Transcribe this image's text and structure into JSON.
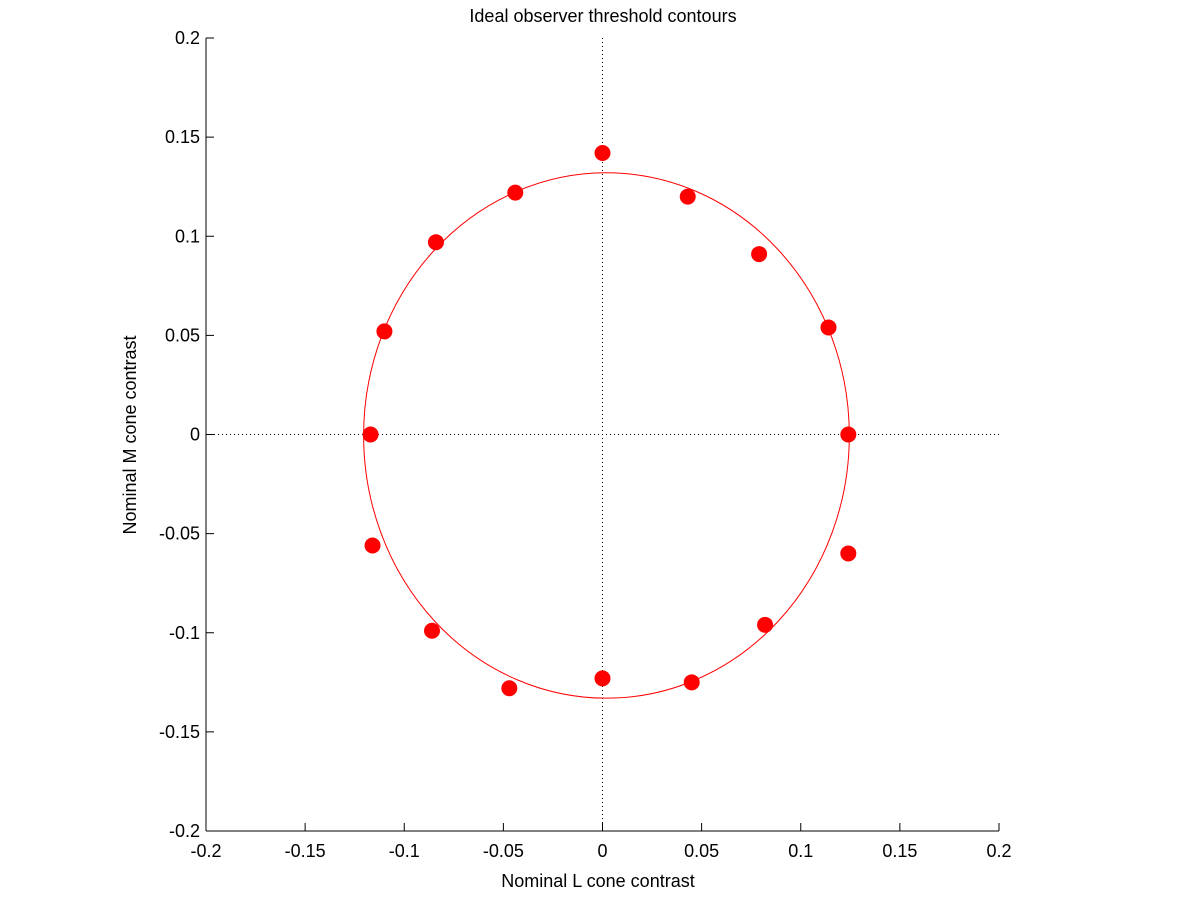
{
  "chart_data": {
    "type": "scatter",
    "title": "Ideal observer threshold contours",
    "xlabel": "Nominal L cone contrast",
    "ylabel": "Nominal M cone contrast",
    "xlim": [
      -0.2,
      0.2
    ],
    "ylim": [
      -0.2,
      0.2
    ],
    "xticks": [
      -0.2,
      -0.15,
      -0.1,
      -0.05,
      0,
      0.05,
      0.1,
      0.15,
      0.2
    ],
    "yticks": [
      -0.2,
      -0.15,
      -0.1,
      -0.05,
      0,
      0.05,
      0.1,
      0.15,
      0.2
    ],
    "xtick_labels": [
      "-0.2",
      "-0.15",
      "-0.1",
      "-0.05",
      "0",
      "0.05",
      "0.1",
      "0.15",
      "0.2"
    ],
    "ytick_labels": [
      "-0.2",
      "-0.15",
      "-0.1",
      "-0.05",
      "0",
      "0.05",
      "0.1",
      "0.15",
      "0.2"
    ],
    "grid": false,
    "reference_lines": {
      "x": 0,
      "y": 0,
      "style": "dotted"
    },
    "series": [
      {
        "type": "scatter",
        "color": "#ff0000",
        "points": [
          [
            0.0,
            0.142
          ],
          [
            0.043,
            0.12
          ],
          [
            0.079,
            0.091
          ],
          [
            0.114,
            0.054
          ],
          [
            0.124,
            0.0
          ],
          [
            0.124,
            -0.06
          ],
          [
            0.082,
            -0.096
          ],
          [
            0.045,
            -0.125
          ],
          [
            0.0,
            -0.123
          ],
          [
            -0.047,
            -0.128
          ],
          [
            -0.086,
            -0.099
          ],
          [
            -0.116,
            -0.056
          ],
          [
            -0.117,
            0.0
          ],
          [
            -0.11,
            0.052
          ],
          [
            -0.084,
            0.097
          ],
          [
            -0.044,
            0.122
          ]
        ]
      },
      {
        "type": "ellipse",
        "color": "#ff0000",
        "center": [
          0.002,
          -0.0005
        ],
        "radii": [
          0.1225,
          0.1325
        ]
      }
    ]
  }
}
